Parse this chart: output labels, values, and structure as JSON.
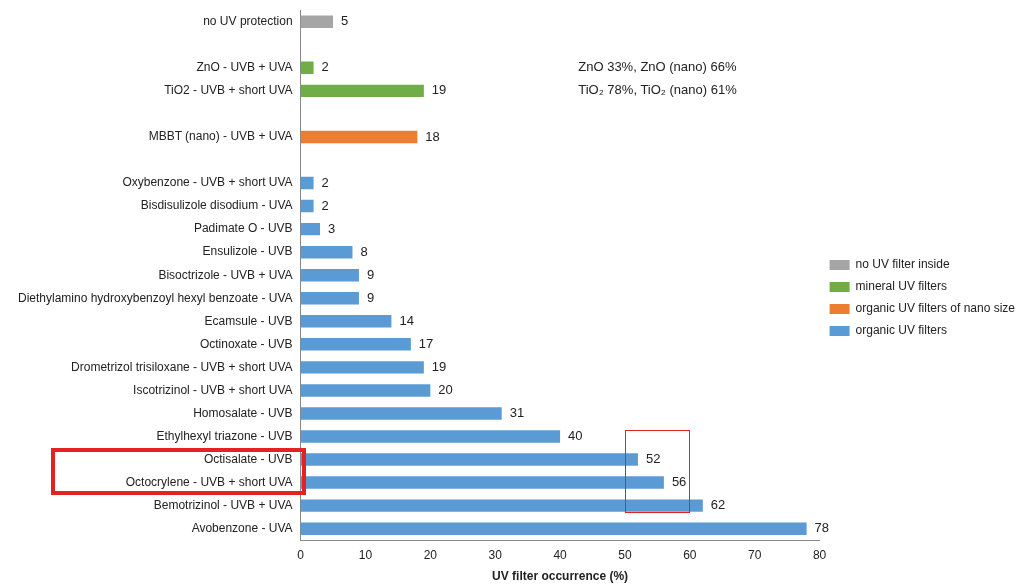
{
  "chart_data": {
    "type": "bar",
    "orientation": "horizontal",
    "stacked": true,
    "xlabel": "UV filter occurrence (%)",
    "categories": [
      "no UV protection",
      null,
      "ZnO - UVB + UVA",
      "TiO2 - UVB + short UVA",
      null,
      "MBBT (nano) - UVB + UVA",
      null,
      "Oxybenzone - UVB + short UVA",
      "Bisdisulizole disodium - UVA",
      "Padimate O - UVB",
      "Ensulizole - UVB",
      "Bisoctrizole - UVB + UVA",
      "Diethylamino hydroxybenzoyl hexyl benzoate - UVA",
      "Ecamsule - UVB",
      "Octinoxate - UVB",
      "Drometrizol trisiloxane - UVB + short UVA",
      "Iscotrizinol - UVB + short UVA",
      "Homosalate - UVB",
      "Ethylhexyl triazone - UVB",
      "Octisalate - UVB",
      "Octocrylene - UVB + short UVA",
      "Bemotrizinol - UVB + UVA",
      "Avobenzone - UVA"
    ],
    "series": [
      {
        "name": "no UV filter inside",
        "color": "#a5a5a5",
        "values": [
          5,
          null,
          null,
          null,
          null,
          null,
          null,
          null,
          null,
          null,
          null,
          null,
          null,
          null,
          null,
          null,
          null,
          null,
          null,
          null,
          null,
          null,
          null
        ]
      },
      {
        "name": "mineral UV filters",
        "color": "#70ad47",
        "values": [
          null,
          null,
          2,
          19,
          null,
          null,
          null,
          null,
          null,
          null,
          null,
          null,
          null,
          null,
          null,
          null,
          null,
          null,
          null,
          null,
          null,
          null,
          null
        ]
      },
      {
        "name": "organic UV filters of nano size",
        "color": "#ed7d31",
        "values": [
          null,
          null,
          null,
          null,
          null,
          18,
          null,
          null,
          null,
          null,
          null,
          null,
          null,
          null,
          null,
          null,
          null,
          null,
          null,
          null,
          null,
          null,
          null
        ]
      },
      {
        "name": "organic UV filters",
        "color": "#5b9bd5",
        "values": [
          null,
          null,
          null,
          null,
          null,
          null,
          null,
          2,
          2,
          3,
          8,
          9,
          9,
          14,
          17,
          19,
          20,
          31,
          40,
          52,
          56,
          62,
          78
        ]
      }
    ],
    "data_labels": true,
    "xlim": [
      0,
      80
    ],
    "xticks": [
      0,
      10,
      20,
      30,
      40,
      50,
      60,
      70,
      80
    ],
    "grid": false,
    "legend": "right",
    "annotations": [
      "ZnO 33%, ZnO (nano) 66%",
      "TiO₂ 78%, TiO₂ (nano) 61%"
    ]
  }
}
